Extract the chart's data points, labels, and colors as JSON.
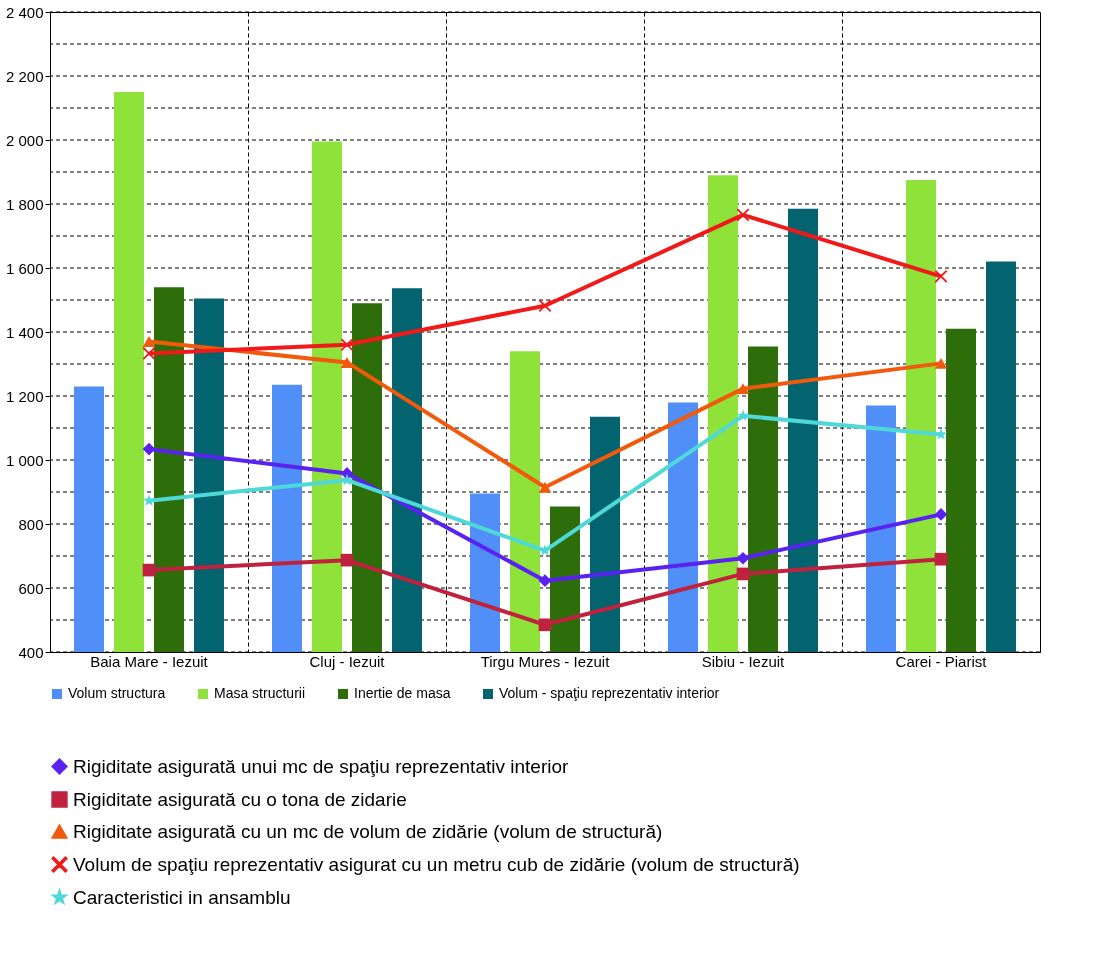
{
  "chart_data": {
    "type": "bar",
    "categories": [
      "Baia Mare - Iezuit",
      "Cluj - Iezuit",
      "Tirgu Mures - Iezuit",
      "Sibiu - Iezuit",
      "Carei - Piarist"
    ],
    "series": [
      {
        "name": "Volum structura",
        "type": "bar",
        "color": "#4f8ff7",
        "values": [
          1230,
          1235,
          895,
          1180,
          1170
        ]
      },
      {
        "name": "Masa structurii",
        "type": "bar",
        "color": "#8ee23a",
        "values": [
          2150,
          1995,
          1340,
          1890,
          1875
        ]
      },
      {
        "name": "Inertie de masa",
        "type": "bar",
        "color": "#2e6e0a",
        "values": [
          1540,
          1490,
          855,
          1355,
          1410
        ]
      },
      {
        "name": "Volum - spaţiu reprezentativ interior",
        "type": "bar",
        "color": "#03636f",
        "values": [
          1505,
          1537,
          1135,
          1785,
          1620
        ]
      },
      {
        "name": "Rigiditate asigurată unui mc de spaţiu reprezentativ interior",
        "type": "line",
        "marker": "diamond",
        "color": "#5a22f0",
        "values": [
          1034,
          958,
          623,
          693,
          830
        ]
      },
      {
        "name": "Rigiditate asigurată cu o tona de zidarie",
        "type": "line",
        "marker": "square",
        "color": "#c0213e",
        "values": [
          656,
          687,
          485,
          644,
          690
        ]
      },
      {
        "name": "Rigiditate asigurată cu un mc de volum de zidărie    (volum de structură)",
        "type": "line",
        "marker": "triangle",
        "color": "#f05a0a",
        "values": [
          1370,
          1305,
          915,
          1223,
          1302
        ]
      },
      {
        "name": "Volum de spaţiu reprezentativ asigurat cu un metru cub de zidărie (volum de structură)",
        "type": "line",
        "marker": "cross",
        "color": "#f01a1a",
        "values": [
          1333,
          1360,
          1482,
          1766,
          1574
        ]
      },
      {
        "name": "Caracteristici in ansamblu",
        "type": "line",
        "marker": "star",
        "color": "#4fd8d8",
        "values": [
          873,
          937,
          717,
          1138,
          1080
        ]
      }
    ],
    "ylim": [
      400,
      2400
    ],
    "yticks": [
      {
        "value": 400,
        "label": "400"
      },
      {
        "value": 500,
        "label": null
      },
      {
        "value": 600,
        "label": "600"
      },
      {
        "value": 700,
        "label": null
      },
      {
        "value": 800,
        "label": "800"
      },
      {
        "value": 900,
        "label": null
      },
      {
        "value": 1000,
        "label": "1 000"
      },
      {
        "value": 1100,
        "label": null
      },
      {
        "value": 1200,
        "label": "1 200"
      },
      {
        "value": 1300,
        "label": null
      },
      {
        "value": 1400,
        "label": "1 400"
      },
      {
        "value": 1500,
        "label": null
      },
      {
        "value": 1600,
        "label": "1 600"
      },
      {
        "value": 1700,
        "label": null
      },
      {
        "value": 1800,
        "label": "1 800"
      },
      {
        "value": 1900,
        "label": null
      },
      {
        "value": 2000,
        "label": "2 000"
      },
      {
        "value": 2100,
        "label": null
      },
      {
        "value": 2200,
        "label": "2 200"
      },
      {
        "value": 2300,
        "label": null
      },
      {
        "value": 2400,
        "label": "2 400"
      }
    ],
    "grid": true,
    "legend": "bottom"
  }
}
